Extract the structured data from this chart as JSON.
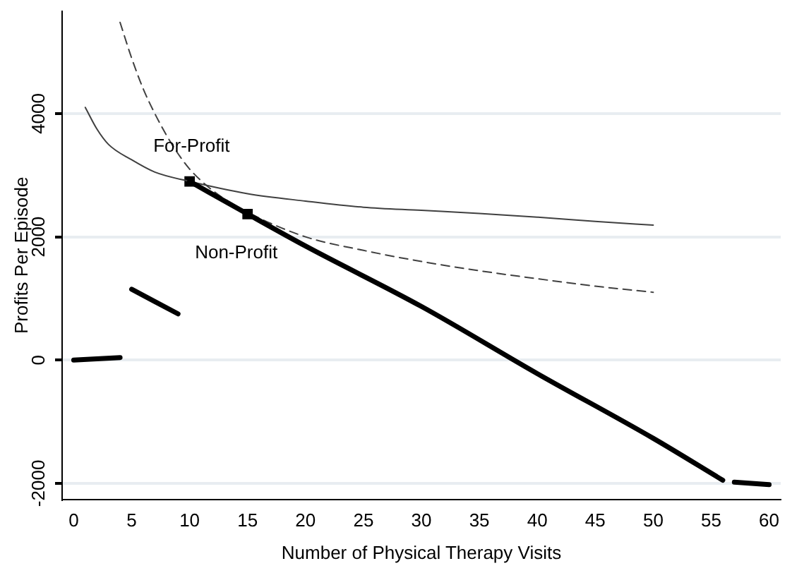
{
  "chart_data": {
    "type": "line",
    "xlabel": "Number of Physical Therapy Visits",
    "ylabel": "Profits Per Episode",
    "xlim": [
      -1,
      61
    ],
    "xticks": [
      0,
      5,
      10,
      15,
      20,
      25,
      30,
      35,
      40,
      45,
      50,
      55,
      60
    ],
    "ylim": [
      -2260,
      5660
    ],
    "yticks": [
      -2000,
      0,
      2000,
      4000
    ],
    "grid": "y",
    "legend": false,
    "marker": "none",
    "series": [
      {
        "color": "#000000",
        "x": [
          0,
          4
        ],
        "values": [
          0,
          40
        ]
      },
      {
        "color": "#000000",
        "x": [
          5,
          9
        ],
        "values": [
          1150,
          750
        ]
      },
      {
        "color": "#000000",
        "x": [
          10,
          15,
          20,
          30,
          40,
          50,
          56
        ],
        "values": [
          2900,
          2370,
          1850,
          870,
          -220,
          -1270,
          -1950
        ]
      },
      {
        "color": "#000000",
        "x": [
          57,
          60
        ],
        "values": [
          -1980,
          -2020
        ]
      },
      {
        "name": "For-Profit",
        "color": "#404040",
        "line_style": "solid",
        "x": [
          1,
          2,
          3,
          5,
          7,
          10,
          15,
          20,
          25,
          30,
          35,
          40,
          45,
          50
        ],
        "values": [
          4100,
          3750,
          3500,
          3250,
          3050,
          2900,
          2700,
          2580,
          2480,
          2430,
          2380,
          2320,
          2250,
          2190
        ]
      },
      {
        "name": "Non-Profit",
        "color": "#404040",
        "line_style": "dashed",
        "x": [
          4,
          5,
          6,
          7,
          8,
          9,
          10,
          12,
          15,
          20,
          25,
          30,
          35,
          40,
          45,
          50
        ],
        "values": [
          5480,
          4900,
          4400,
          4000,
          3650,
          3350,
          3100,
          2750,
          2400,
          2000,
          1780,
          1600,
          1450,
          1320,
          1200,
          1100
        ]
      },
      {
        "type": "scatter",
        "marker": "square",
        "color": "#000000",
        "x": [
          10,
          15
        ],
        "values": [
          2900,
          2370
        ]
      }
    ]
  }
}
